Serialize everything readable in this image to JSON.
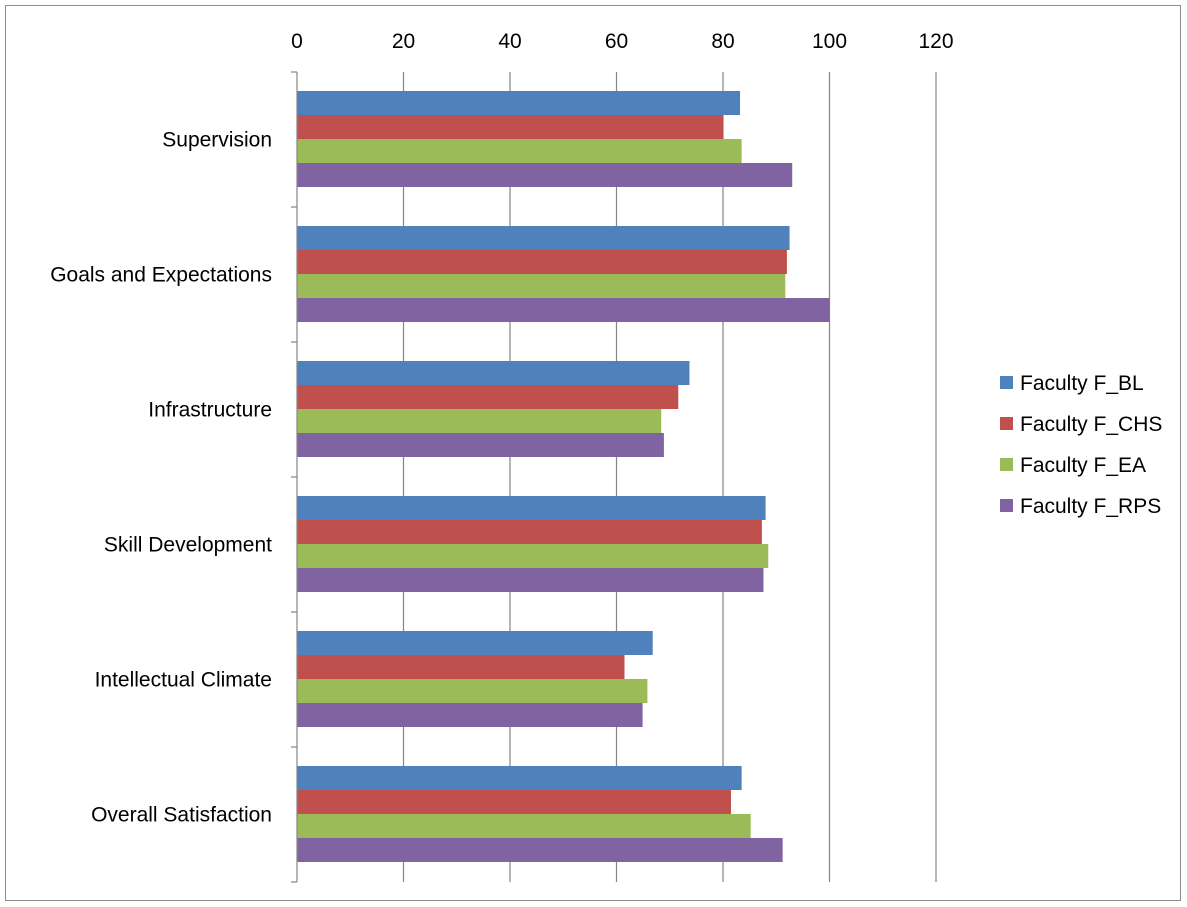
{
  "chart_data": {
    "type": "bar",
    "orientation": "horizontal",
    "title": "",
    "xlabel": "",
    "ylabel": "",
    "xlim": [
      0,
      120
    ],
    "x_ticks": [
      "0",
      "20",
      "40",
      "60",
      "80",
      "100",
      "120"
    ],
    "x_axis_position": "top",
    "grid": true,
    "legend_position": "right",
    "categories": [
      "Supervision",
      "Goals and Expectations",
      "Infrastructure",
      "Skill Development",
      "Intellectual Climate",
      "Overall Satisfaction"
    ],
    "series": [
      {
        "name": "Faculty F_BL",
        "color": "#4f81bd",
        "values": [
          83.2,
          92.5,
          73.7,
          88.0,
          66.8,
          83.5
        ]
      },
      {
        "name": "Faculty F_CHS",
        "color": "#c0504d",
        "values": [
          80.0,
          92.0,
          71.6,
          87.3,
          61.5,
          81.5
        ]
      },
      {
        "name": "Faculty F_EA",
        "color": "#9bbb59",
        "values": [
          83.5,
          91.7,
          68.4,
          88.5,
          65.8,
          85.2
        ]
      },
      {
        "name": "Faculty F_RPS",
        "color": "#8064a2",
        "values": [
          93.0,
          100.0,
          68.9,
          87.6,
          64.9,
          91.2
        ]
      }
    ]
  }
}
